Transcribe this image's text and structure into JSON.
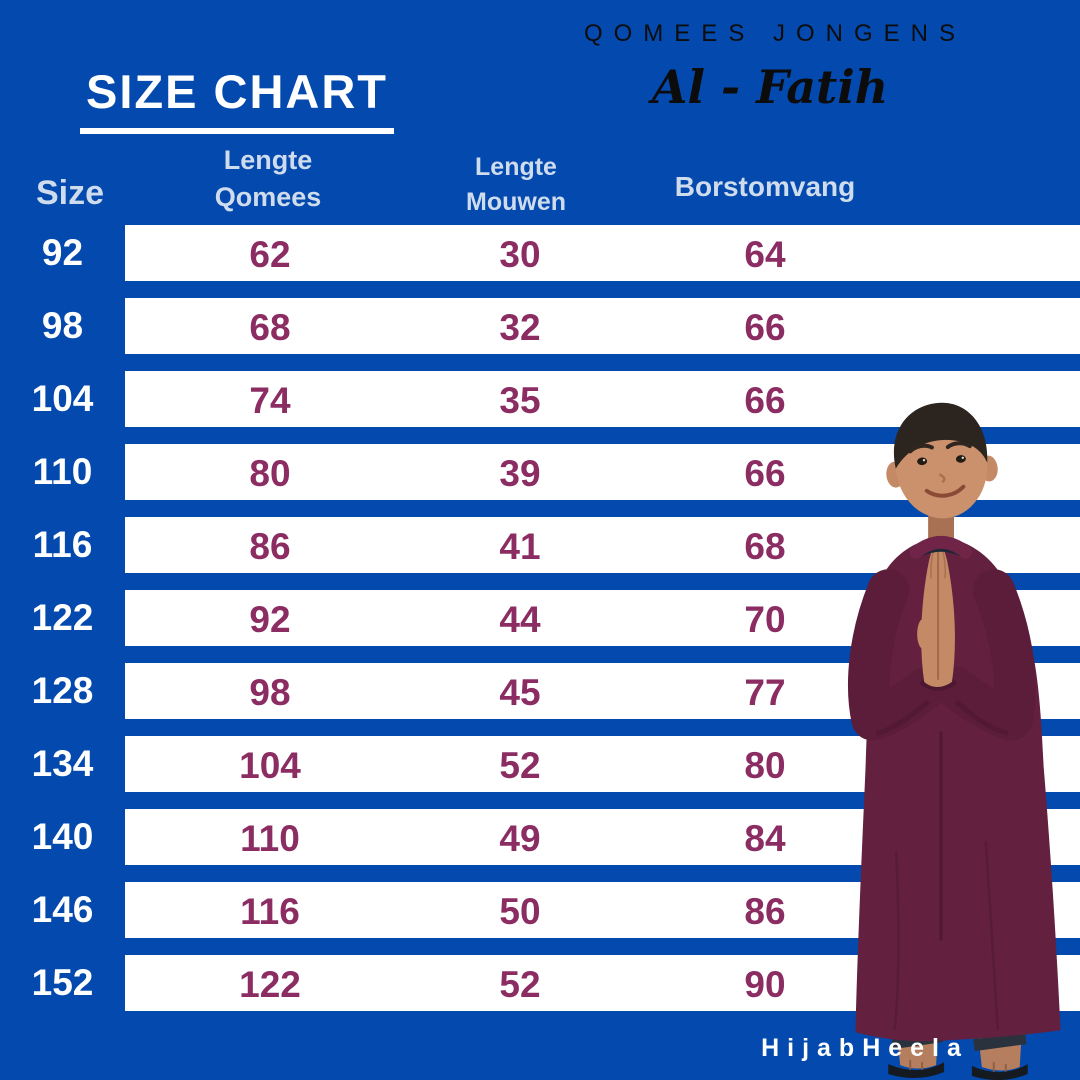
{
  "header": {
    "title": "SIZE CHART",
    "brand_line": "QOMEES JONGENS",
    "product_name": "Al - Fatih"
  },
  "table": {
    "columns": [
      {
        "id": "size",
        "label": "Size"
      },
      {
        "id": "lengte_qomees",
        "label": "Lengte\nQomees"
      },
      {
        "id": "lengte_mouwen",
        "label": "Lengte\nMouwen"
      },
      {
        "id": "borstomvang",
        "label": "Borstomvang"
      }
    ],
    "rows": [
      {
        "size": "92",
        "lengte_qomees": "62",
        "lengte_mouwen": "30",
        "borstomvang": "64"
      },
      {
        "size": "98",
        "lengte_qomees": "68",
        "lengte_mouwen": "32",
        "borstomvang": "66"
      },
      {
        "size": "104",
        "lengte_qomees": "74",
        "lengte_mouwen": "35",
        "borstomvang": "66"
      },
      {
        "size": "110",
        "lengte_qomees": "80",
        "lengte_mouwen": "39",
        "borstomvang": "66"
      },
      {
        "size": "116",
        "lengte_qomees": "86",
        "lengte_mouwen": "41",
        "borstomvang": "68"
      },
      {
        "size": "122",
        "lengte_qomees": "92",
        "lengte_mouwen": "44",
        "borstomvang": "70"
      },
      {
        "size": "128",
        "lengte_qomees": "98",
        "lengte_mouwen": "45",
        "borstomvang": "77"
      },
      {
        "size": "134",
        "lengte_qomees": "104",
        "lengte_mouwen": "52",
        "borstomvang": "80"
      },
      {
        "size": "140",
        "lengte_qomees": "110",
        "lengte_mouwen": "49",
        "borstomvang": "84"
      },
      {
        "size": "146",
        "lengte_qomees": "116",
        "lengte_mouwen": "50",
        "borstomvang": "86"
      },
      {
        "size": "152",
        "lengte_qomees": "122",
        "lengte_mouwen": "52",
        "borstomvang": "90"
      }
    ]
  },
  "footer": {
    "watermark": "HijabHeela"
  },
  "illustration": {
    "alt": "smiling boy wearing maroon qomees, hands pressed together"
  },
  "colors": {
    "background": "#0449ad",
    "row_bar": "#ffffff",
    "header_text": "#cfdcee",
    "size_text": "#ffffff",
    "value_text": "#8b2d63",
    "brand_text": "#0d0d0d",
    "title_text": "#ffffff",
    "robe": "#63203f"
  },
  "chart_data": {
    "type": "table",
    "title": "SIZE CHART",
    "columns": [
      "Size",
      "Lengte Qomees",
      "Lengte Mouwen",
      "Borstomvang"
    ],
    "rows": [
      [
        92,
        62,
        30,
        64
      ],
      [
        98,
        68,
        32,
        66
      ],
      [
        104,
        74,
        35,
        66
      ],
      [
        110,
        80,
        39,
        66
      ],
      [
        116,
        86,
        41,
        68
      ],
      [
        122,
        92,
        44,
        70
      ],
      [
        128,
        98,
        45,
        77
      ],
      [
        134,
        104,
        52,
        80
      ],
      [
        140,
        110,
        49,
        84
      ],
      [
        146,
        116,
        50,
        86
      ],
      [
        152,
        122,
        52,
        90
      ]
    ]
  }
}
